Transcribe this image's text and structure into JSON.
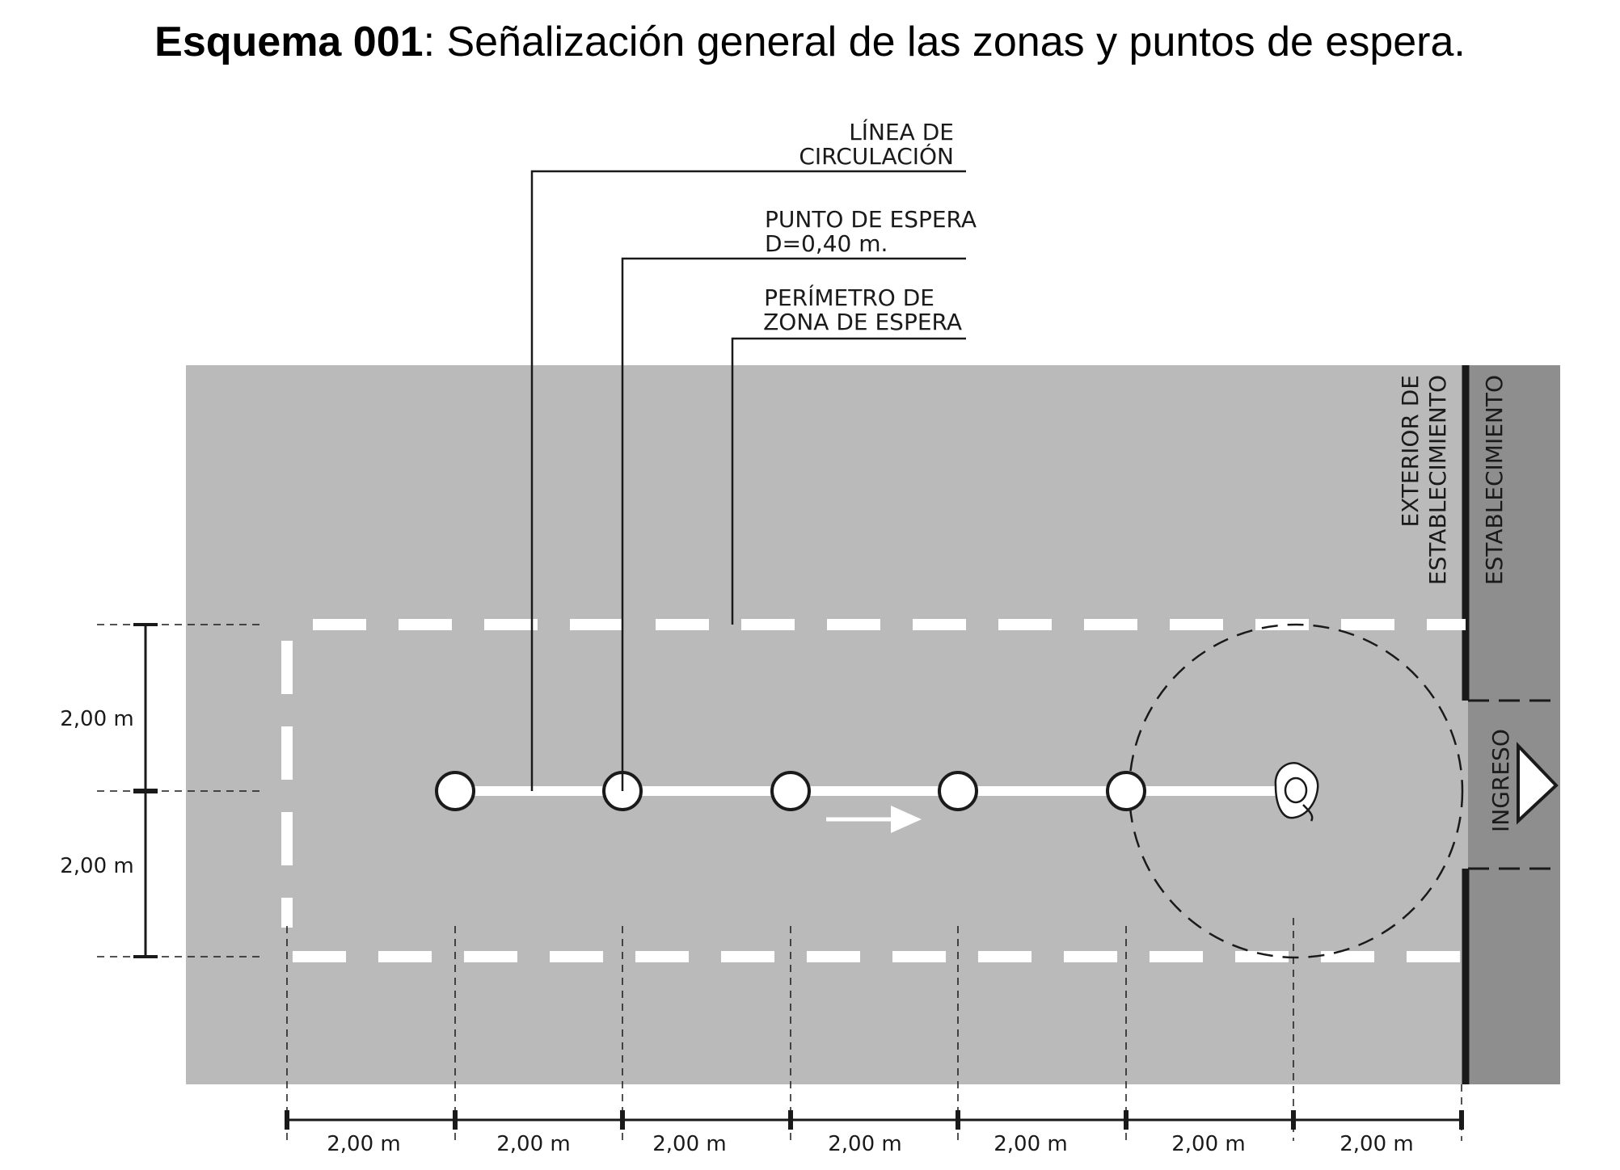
{
  "title": {
    "bold": "Esquema 001",
    "rest": ": Señalización  general de las zonas y puntos de espera."
  },
  "callouts": {
    "linea": [
      "LÍNEA DE",
      "CIRCULACIÓN"
    ],
    "punto": [
      "PUNTO DE ESPERA",
      "D=0,40 m."
    ],
    "perimetro": [
      "PERÍMETRO DE",
      "ZONA DE ESPERA"
    ]
  },
  "zones": {
    "exterior": [
      "EXTERIOR DE",
      "ESTABLECIMIENTO"
    ],
    "establecimiento": "ESTABLECIMIENTO",
    "ingreso": "INGRESO"
  },
  "dimensions": {
    "vertical": [
      "2,00 m",
      "2,00 m"
    ],
    "horizontal": [
      "2,00 m",
      "2,00 m",
      "2,00 m",
      "2,00 m",
      "2,00 m",
      "2,00 m",
      "2,00 m"
    ]
  },
  "colors": {
    "exterior_floor": "#bababa",
    "interior_floor": "#8e8e8e",
    "marking": "#ffffff",
    "ink": "#1a1a1a"
  },
  "icons": {
    "flow_arrow": "arrow-right-icon",
    "person": "person-top-view-icon",
    "entry": "triangle-right-icon"
  }
}
